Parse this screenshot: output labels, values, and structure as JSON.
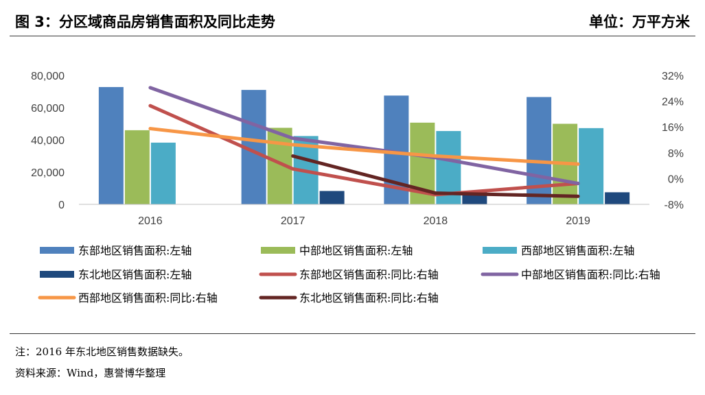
{
  "title": "图 3：分区域商品房销售面积及同比走势",
  "unit": "单位：万平方米",
  "chart_data": {
    "type": "bar",
    "categories": [
      "2016",
      "2017",
      "2018",
      "2019"
    ],
    "left_axis": {
      "min": 0,
      "max": 80000,
      "ticks": [
        "0",
        "20,000",
        "40,000",
        "60,000",
        "80,000"
      ],
      "tick_values": [
        0,
        20000,
        40000,
        60000,
        80000
      ]
    },
    "right_axis": {
      "min": -0.08,
      "max": 0.32,
      "ticks": [
        "-8%",
        "0%",
        "8%",
        "16%",
        "24%",
        "32%"
      ],
      "tick_values": [
        -0.08,
        0,
        0.08,
        0.16,
        0.24,
        0.32
      ]
    },
    "series": [
      {
        "name": "东部地区销售面积:左轴",
        "kind": "bar",
        "axis": "left",
        "color": "#4F81BD",
        "values": [
          72800,
          71000,
          67500,
          66600
        ]
      },
      {
        "name": "中部地区销售面积:左轴",
        "kind": "bar",
        "axis": "left",
        "color": "#9BBB59",
        "values": [
          46000,
          47500,
          50700,
          50000
        ]
      },
      {
        "name": "西部地区销售面积:左轴",
        "kind": "bar",
        "axis": "left",
        "color": "#4BACC6",
        "values": [
          38300,
          42400,
          45500,
          47300
        ]
      },
      {
        "name": "东北地区销售面积:左轴",
        "kind": "bar",
        "axis": "left",
        "color": "#1F497D",
        "values": [
          null,
          8300,
          7800,
          7500
        ]
      },
      {
        "name": "东部地区销售面积:同比:右轴",
        "kind": "line",
        "axis": "right",
        "color": "#C0504D",
        "values": [
          0.226,
          0.03,
          -0.05,
          -0.015
        ]
      },
      {
        "name": "中部地区销售面积:同比:右轴",
        "kind": "line",
        "axis": "right",
        "color": "#8064A2",
        "values": [
          0.282,
          0.125,
          0.065,
          -0.015
        ]
      },
      {
        "name": "西部地区销售面积:同比:右轴",
        "kind": "line",
        "axis": "right",
        "color": "#F79646",
        "values": [
          0.155,
          0.105,
          0.07,
          0.045
        ]
      },
      {
        "name": "东北地区销售面积:同比:右轴",
        "kind": "line",
        "axis": "right",
        "color": "#632523",
        "values": [
          null,
          0.07,
          -0.045,
          -0.055
        ]
      }
    ]
  },
  "notes": {
    "footnote": "注：2016 年东北地区销售数据缺失。",
    "source": "资料来源：Wind，惠誉博华整理"
  }
}
